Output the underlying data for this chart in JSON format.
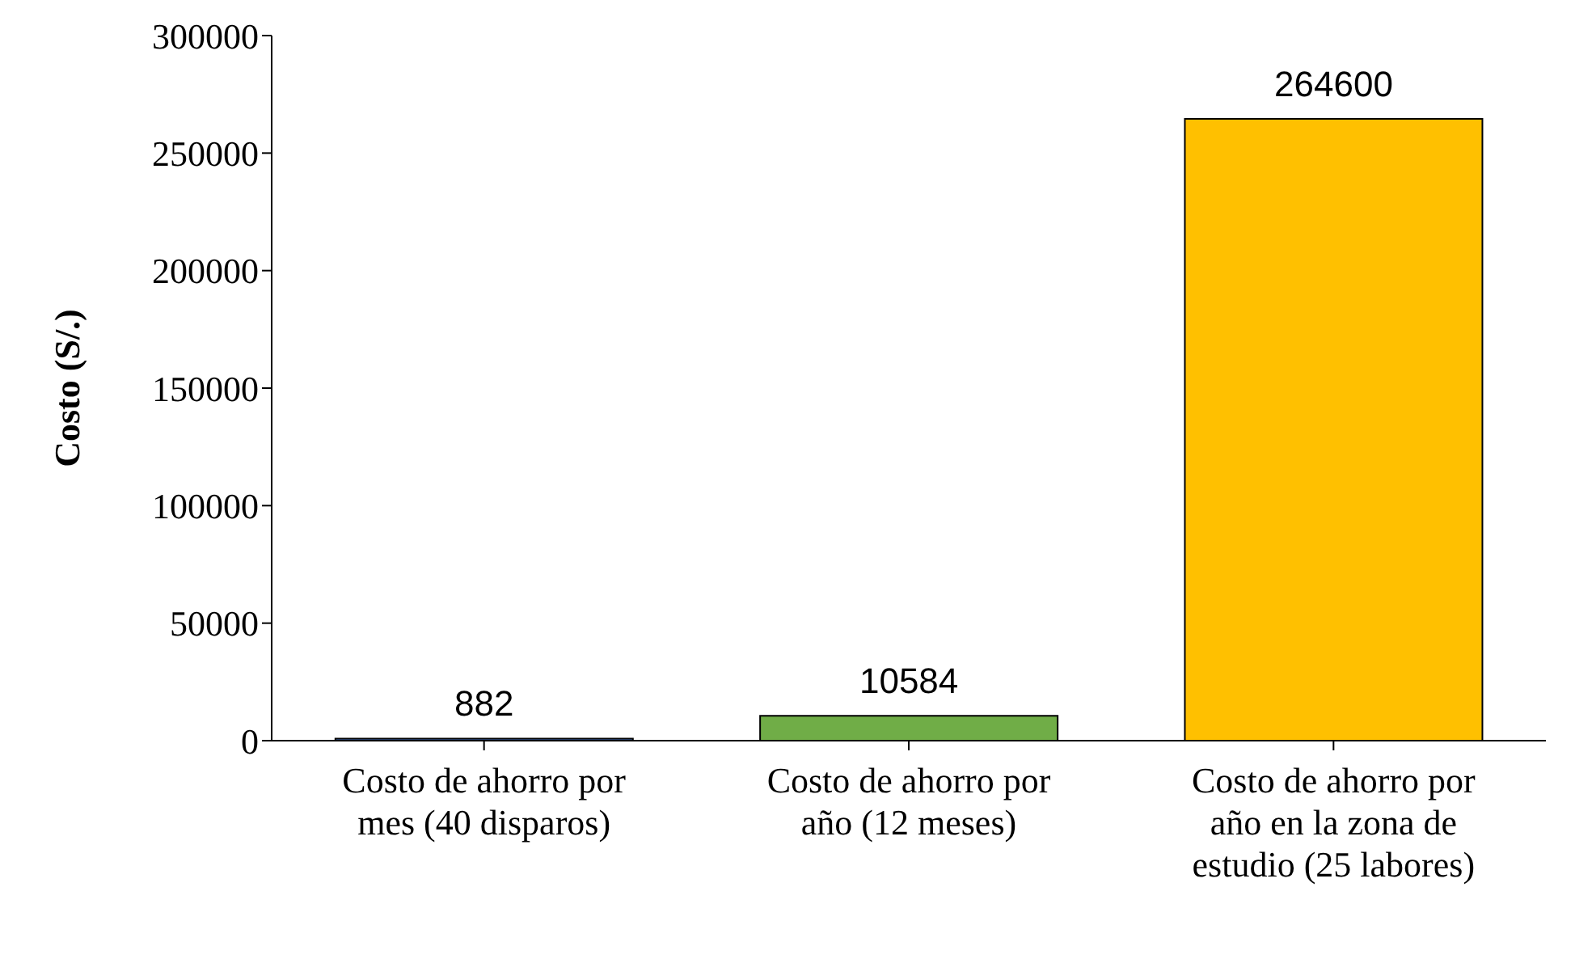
{
  "chart_data": {
    "type": "bar",
    "ylabel": "Costo (S/.)",
    "categories": [
      "Costo de ahorro por mes (40 disparos)",
      "Costo de ahorro por año (12 meses)",
      "Costo de ahorro por año en la zona de estudio (25 labores)"
    ],
    "values": [
      882,
      10584,
      264600
    ],
    "colors": [
      "#4472c4",
      "#70ad47",
      "#ffc000"
    ],
    "ylim": [
      0,
      300000
    ],
    "yticks": [
      0,
      50000,
      100000,
      150000,
      200000,
      250000,
      300000
    ],
    "grid": false,
    "data_labels": true
  }
}
